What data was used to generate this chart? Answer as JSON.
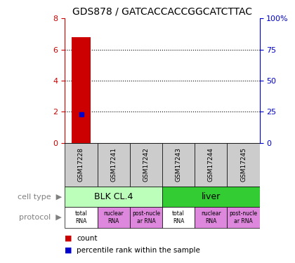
{
  "title": "GDS878 / GATCACCACCGGCATCTTAC",
  "samples": [
    "GSM17228",
    "GSM17241",
    "GSM17242",
    "GSM17243",
    "GSM17244",
    "GSM17245"
  ],
  "bar_values": [
    6.8,
    0,
    0,
    0,
    0,
    0
  ],
  "dot_values": [
    23.0,
    0,
    0,
    0,
    0,
    0
  ],
  "ylim_left": [
    0,
    8
  ],
  "ylim_right": [
    0,
    100
  ],
  "yticks_left": [
    0,
    2,
    4,
    6,
    8
  ],
  "yticks_right": [
    0,
    25,
    50,
    75,
    100
  ],
  "bar_color": "#cc0000",
  "dot_color": "#0000cc",
  "cell_types": [
    {
      "label": "BLK CL.4",
      "span": [
        0,
        3
      ],
      "color": "#bbffbb"
    },
    {
      "label": "liver",
      "span": [
        3,
        6
      ],
      "color": "#33cc33"
    }
  ],
  "protocols": [
    {
      "label": "total\nRNA",
      "color": "#ffffff"
    },
    {
      "label": "nuclear\nRNA",
      "color": "#dd88dd"
    },
    {
      "label": "post-nucle\nar RNA",
      "color": "#dd88dd"
    },
    {
      "label": "total\nRNA",
      "color": "#ffffff"
    },
    {
      "label": "nuclear\nRNA",
      "color": "#dd88dd"
    },
    {
      "label": "post-nucle\nar RNA",
      "color": "#dd88dd"
    }
  ],
  "left_axis_color": "#cc0000",
  "right_axis_color": "#0000cc",
  "sample_box_color": "#cccccc",
  "fig_width": 4.2,
  "fig_height": 3.75,
  "dpi": 100
}
